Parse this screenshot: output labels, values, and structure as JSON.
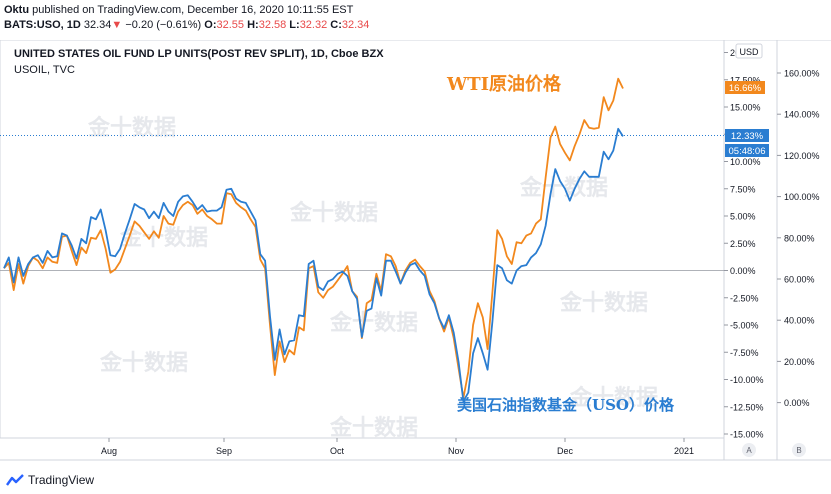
{
  "header": {
    "user": "Oktu",
    "published_text": "published on TradingView.com, December 16, 2020 10:11:55 EST",
    "symbol": "BATS:USO, 1D",
    "price": "32.34",
    "change_arrow": "▼",
    "change": "−0.20 (−0.61%)",
    "o_label": "O:",
    "o_value": "32.55",
    "h_label": "H:",
    "h_value": "32.58",
    "l_label": "L:",
    "l_value": "32.32",
    "c_label": "C:",
    "c_value": "32.34"
  },
  "legend": {
    "title": "UNITED STATES OIL FUND LP UNITS(POST REV SPLIT), 1D, Cboe BZX",
    "subtitle": "USOIL, TVC"
  },
  "annotations": {
    "wti": "WTI原油价格",
    "uso": "美国石油指数基金（USO）价格"
  },
  "watermark": "金十数据",
  "currency": "USD",
  "price_labels": {
    "wti": "16.66%",
    "uso": "12.33%",
    "countdown": "05:48:06"
  },
  "scale_buttons": {
    "a": "A",
    "b": "B"
  },
  "footer": {
    "brand": "TradingView"
  },
  "colors": {
    "wti": "#f2881d",
    "uso": "#2a7dd1",
    "dotted_line": "#2a7dd1"
  },
  "chart_data": {
    "type": "line",
    "x_ticks": [
      "Aug",
      "Sep",
      "Oct",
      "Nov",
      "Dec",
      "2021"
    ],
    "y_left_ticks": [
      "20.00%",
      "17.50%",
      "15.00%",
      "12.50%",
      "10.00%",
      "7.50%",
      "5.00%",
      "2.50%",
      "0.00%",
      "-2.50%",
      "-5.00%",
      "-7.50%",
      "-10.00%",
      "-12.50%",
      "-15.00%"
    ],
    "y_left_range": [
      -15,
      20
    ],
    "y_right_ticks": [
      "160.00%",
      "140.00%",
      "120.00%",
      "100.00%",
      "80.00%",
      "60.00%",
      "40.00%",
      "20.00%",
      "0.00%"
    ],
    "series": [
      {
        "key": "wti",
        "values": [
          0.2,
          0.7,
          -1.8,
          0.6,
          -1.2,
          0.4,
          1.2,
          0.9,
          0.2,
          1.2,
          0.8,
          0.7,
          3.1,
          3.2,
          1.8,
          0.5,
          2.1,
          1.6,
          3.0,
          2.9,
          3.7,
          2.0,
          -0.2,
          0.1,
          0.8,
          2.0,
          3.2,
          4.5,
          4.1,
          3.5,
          2.9,
          3.6,
          3.0,
          5.0,
          4.3,
          4.2,
          5.4,
          6.0,
          6.3,
          6.0,
          5.2,
          5.6,
          5.0,
          4.7,
          4.3,
          4.3,
          7.1,
          7.0,
          6.2,
          5.8,
          5.5,
          4.7,
          4.0,
          1.0,
          0.2,
          -5.0,
          -9.6,
          -6.5,
          -8.4,
          -7.3,
          -7.7,
          -5.2,
          -5.5,
          0.2,
          0.4,
          -2.0,
          -2.5,
          -1.8,
          -1.5,
          -0.9,
          -0.3,
          0.4,
          -1.9,
          -2.4,
          -6.2,
          -3.0,
          -2.7,
          -0.3,
          -1.9,
          1.5,
          1.3,
          0.4,
          -1.2,
          0.0,
          0.7,
          1.0,
          0.4,
          -0.1,
          -1.9,
          -2.8,
          -4.4,
          -5.6,
          -4.3,
          -6.2,
          -9.0,
          -11.7,
          -9.3,
          -5.0,
          -3.0,
          -4.3,
          -7.2,
          -2.0,
          3.7,
          2.9,
          1.3,
          0.6,
          2.6,
          2.5,
          3.2,
          3.4,
          4.3,
          4.7,
          8.5,
          12.2,
          13.2,
          11.6,
          10.8,
          10.1,
          11.4,
          12.5,
          13.8,
          13.1,
          13.0,
          13.1,
          15.9,
          14.7,
          15.6,
          17.6,
          16.7
        ]
      },
      {
        "key": "uso",
        "values": [
          0.2,
          1.2,
          -1.1,
          1.2,
          -0.5,
          0.6,
          1.2,
          1.4,
          0.7,
          1.8,
          1.2,
          1.3,
          3.4,
          3.2,
          2.3,
          1.1,
          2.9,
          2.5,
          4.9,
          4.7,
          5.6,
          3.7,
          1.4,
          1.3,
          2.0,
          3.4,
          4.7,
          6.1,
          5.8,
          5.6,
          4.8,
          5.4,
          4.8,
          6.2,
          5.4,
          5.0,
          6.3,
          6.8,
          6.9,
          6.3,
          5.6,
          6.0,
          5.4,
          5.5,
          5.5,
          5.8,
          7.4,
          7.5,
          6.6,
          6.3,
          6.2,
          5.4,
          4.6,
          1.5,
          0.9,
          -4.2,
          -8.2,
          -5.4,
          -7.7,
          -6.5,
          -6.4,
          -4.1,
          -4.2,
          0.6,
          0.9,
          -1.5,
          -1.8,
          -1.0,
          -0.8,
          -0.3,
          -0.1,
          -0.5,
          -1.9,
          -2.6,
          -6.1,
          -3.7,
          -3.5,
          -0.7,
          -2.3,
          0.9,
          0.9,
          -0.1,
          -1.2,
          -0.2,
          0.5,
          0.7,
          0.0,
          -0.5,
          -2.2,
          -3.0,
          -4.4,
          -5.3,
          -4.1,
          -5.7,
          -8.4,
          -12.0,
          -11.2,
          -7.6,
          -6.2,
          -7.6,
          -9.1,
          -4.7,
          0.5,
          0.2,
          -0.9,
          -1.2,
          0.0,
          0.4,
          0.5,
          1.2,
          1.6,
          2.4,
          4.1,
          7.0,
          9.3,
          8.2,
          7.5,
          6.4,
          7.5,
          8.4,
          9.1,
          8.6,
          8.6,
          8.6,
          10.9,
          10.2,
          11.0,
          13.0,
          12.3
        ]
      }
    ],
    "grid": false,
    "legend": "top-left"
  }
}
